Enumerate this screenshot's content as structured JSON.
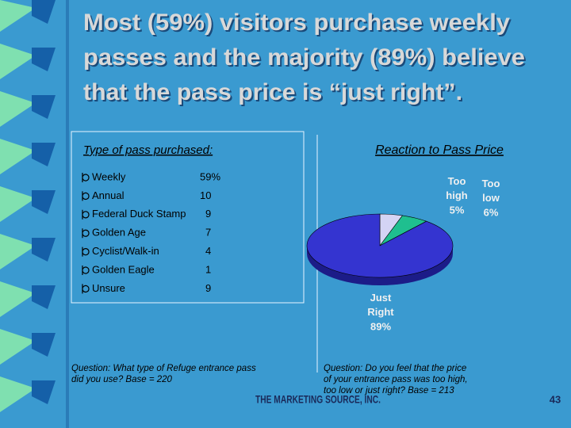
{
  "title": [
    "Most (59%) visitors purchase weekly",
    "passes and the majority (89%) believe",
    "that the pass price is “just right”."
  ],
  "list": {
    "heading": "Type of pass purchased:",
    "items": [
      {
        "label": "Weekly",
        "value": "59%"
      },
      {
        "label": "Annual",
        "value": "10"
      },
      {
        "label": "Federal Duck Stamp",
        "value": "9"
      },
      {
        "label": "Golden Age",
        "value": "7"
      },
      {
        "label": "Cyclist/Walk-in",
        "value": "4"
      },
      {
        "label": "Golden Eagle",
        "value": "1"
      },
      {
        "label": "Unsure",
        "value": "9"
      }
    ]
  },
  "question_left": [
    "Question:  What type of Refuge entrance pass",
    "did you use?  Base = 220"
  ],
  "chart_data": {
    "type": "pie",
    "title": "Reaction to Pass Price",
    "categories": [
      "Too high",
      "Too low",
      "Just Right"
    ],
    "values": [
      5,
      6,
      89
    ],
    "value_labels": [
      "5%",
      "6%",
      "89%"
    ],
    "colors": [
      "#d4d4f4",
      "#1fbf8f",
      "#3434d0"
    ]
  },
  "question_right": [
    "Question:  Do you feel that the price",
    "of your entrance pass was too high,",
    "too low or just right?  Base = 213"
  ],
  "footer": "THE MARKETING SOURCE, INC.",
  "page_number": "43"
}
